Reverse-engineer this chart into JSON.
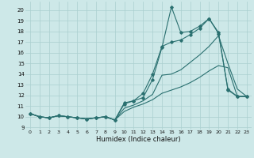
{
  "xlabel": "Humidex (Indice chaleur)",
  "bg_color": "#cde8e8",
  "grid_color": "#aacfcf",
  "line_color": "#2a7070",
  "xlim": [
    -0.5,
    23.5
  ],
  "ylim": [
    8.8,
    20.8
  ],
  "xticks": [
    0,
    1,
    2,
    3,
    4,
    5,
    6,
    7,
    8,
    9,
    10,
    11,
    12,
    13,
    14,
    15,
    16,
    17,
    18,
    19,
    20,
    21,
    22,
    23
  ],
  "yticks": [
    9,
    10,
    11,
    12,
    13,
    14,
    15,
    16,
    17,
    18,
    19,
    20
  ],
  "line1_x": [
    0,
    1,
    2,
    3,
    4,
    5,
    6,
    7,
    8,
    9,
    10,
    11,
    12,
    13,
    14,
    15,
    16,
    17,
    18,
    19,
    20,
    21,
    22,
    23
  ],
  "line1_y": [
    10.3,
    10.0,
    9.9,
    10.1,
    10.0,
    9.9,
    9.8,
    9.9,
    10.0,
    9.7,
    11.3,
    11.5,
    11.8,
    13.5,
    16.5,
    20.3,
    17.9,
    18.0,
    18.5,
    19.2,
    17.9,
    12.5,
    11.9,
    11.9
  ],
  "line2_x": [
    0,
    1,
    2,
    3,
    4,
    5,
    6,
    7,
    8,
    9,
    10,
    11,
    12,
    13,
    14,
    15,
    16,
    17,
    18,
    19,
    20,
    21,
    22,
    23
  ],
  "line2_y": [
    10.3,
    10.0,
    9.9,
    10.1,
    10.0,
    9.9,
    9.8,
    9.9,
    10.0,
    9.7,
    11.2,
    11.5,
    12.2,
    14.0,
    16.6,
    17.0,
    17.2,
    17.7,
    18.3,
    19.2,
    17.8,
    12.6,
    11.9,
    11.9
  ],
  "line3_x": [
    0,
    1,
    2,
    3,
    4,
    5,
    6,
    7,
    8,
    9,
    10,
    11,
    12,
    13,
    14,
    15,
    16,
    17,
    18,
    19,
    20,
    21,
    22,
    23
  ],
  "line3_y": [
    10.3,
    10.0,
    9.9,
    10.1,
    10.0,
    9.9,
    9.8,
    9.9,
    10.0,
    9.7,
    10.8,
    11.1,
    11.5,
    12.1,
    13.9,
    14.0,
    14.4,
    15.1,
    15.8,
    16.6,
    17.6,
    15.0,
    12.6,
    11.9
  ],
  "line4_x": [
    0,
    1,
    2,
    3,
    4,
    5,
    6,
    7,
    8,
    9,
    10,
    11,
    12,
    13,
    14,
    15,
    16,
    17,
    18,
    19,
    20,
    21,
    22,
    23
  ],
  "line4_y": [
    10.3,
    10.0,
    9.9,
    10.1,
    10.0,
    9.9,
    9.8,
    9.9,
    10.0,
    9.7,
    10.5,
    10.9,
    11.2,
    11.6,
    12.2,
    12.5,
    12.8,
    13.2,
    13.7,
    14.3,
    14.8,
    14.6,
    11.9,
    11.9
  ]
}
